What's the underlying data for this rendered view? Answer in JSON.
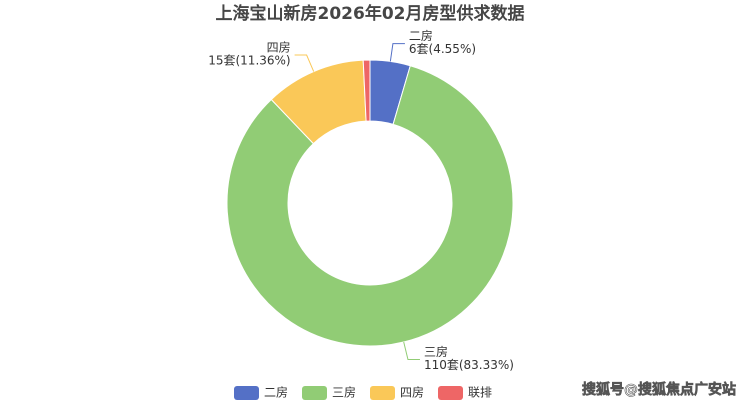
{
  "chart_data": {
    "type": "pie",
    "title": "上海宝山新房2026年02月房型供求数据",
    "categories": [
      "二房",
      "三房",
      "四房",
      "联排"
    ],
    "values": [
      6,
      110,
      15,
      1
    ],
    "value_labels": [
      "6套(4.55%)",
      "110套(83.33%)",
      "15套(11.36%)",
      null
    ],
    "colors": [
      "#5470c6",
      "#91cc75",
      "#fac858",
      "#ee6666"
    ],
    "donut": true,
    "legend": "bottom",
    "watermark": "搜狐号@搜狐焦点广安站"
  }
}
